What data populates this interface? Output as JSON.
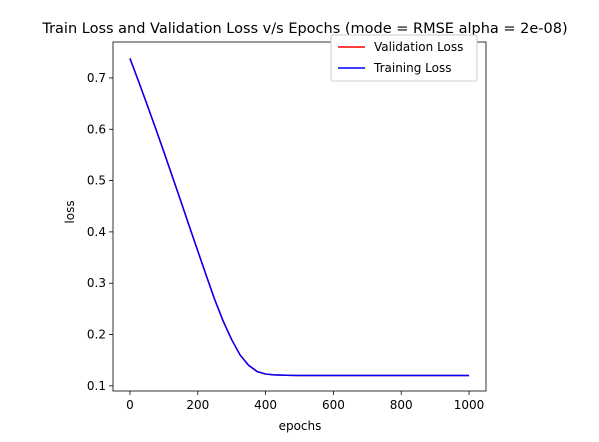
{
  "chart_data": {
    "type": "line",
    "title": "Train Loss and Validation Loss v/s Epochs (mode = RMSE alpha = 2e-08)",
    "xlabel": "epochs",
    "ylabel": "loss",
    "xlim": [
      -50,
      1050
    ],
    "ylim": [
      0.09,
      0.77
    ],
    "xticks": [
      0,
      200,
      400,
      600,
      800,
      1000
    ],
    "yticks": [
      0.1,
      0.2,
      0.3,
      0.4,
      0.5,
      0.6,
      0.7
    ],
    "xtick_labels": [
      "0",
      "200",
      "400",
      "600",
      "800",
      "1000"
    ],
    "ytick_labels": [
      "0.1",
      "0.2",
      "0.3",
      "0.4",
      "0.5",
      "0.6",
      "0.7"
    ],
    "grid": false,
    "legend_position": "upper right",
    "x": [
      0,
      25,
      50,
      75,
      100,
      125,
      150,
      175,
      200,
      225,
      250,
      275,
      300,
      325,
      350,
      375,
      400,
      425,
      450,
      475,
      500,
      550,
      600,
      700,
      800,
      900,
      1000
    ],
    "series": [
      {
        "name": "Validation Loss",
        "color": "#ff0000",
        "values": [
          0.738,
          0.694,
          0.649,
          0.603,
          0.556,
          0.508,
          0.46,
          0.411,
          0.363,
          0.315,
          0.268,
          0.226,
          0.19,
          0.16,
          0.14,
          0.128,
          0.123,
          0.1215,
          0.121,
          0.1205,
          0.1203,
          0.1202,
          0.1202,
          0.1202,
          0.1202,
          0.1202,
          0.1202
        ]
      },
      {
        "name": "Training Loss",
        "color": "#0000ff",
        "values": [
          0.738,
          0.694,
          0.649,
          0.603,
          0.556,
          0.508,
          0.46,
          0.411,
          0.363,
          0.315,
          0.268,
          0.226,
          0.19,
          0.16,
          0.14,
          0.128,
          0.123,
          0.1215,
          0.121,
          0.1205,
          0.1203,
          0.1202,
          0.1202,
          0.1202,
          0.1202,
          0.1202,
          0.1202
        ]
      }
    ]
  }
}
